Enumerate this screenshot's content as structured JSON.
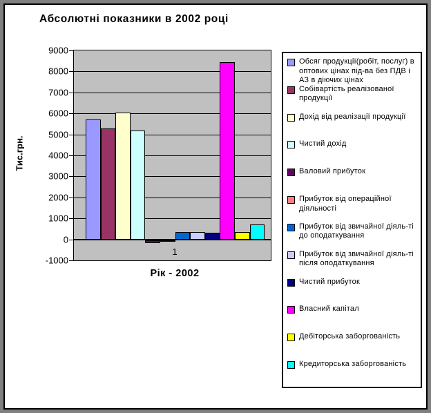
{
  "window": {
    "frame_color": "#808080",
    "border_color": "#000000",
    "background": "#FFFFFF"
  },
  "chart_data": {
    "type": "bar",
    "title": "Абсолютні показники в 2002 році",
    "xlabel": "Рік - 2002",
    "ylabel": "Тис.грн.",
    "categories": [
      "1"
    ],
    "ylim": [
      -1000,
      9000
    ],
    "ytick_step": 1000,
    "yticks": [
      9000,
      8000,
      7000,
      6000,
      5000,
      4000,
      3000,
      2000,
      1000,
      0,
      -1000
    ],
    "grid": true,
    "plot_background": "#C0C0C0",
    "legend_position": "right",
    "series": [
      {
        "name": "Обсяг продукції(робіт, послуг) в оптових цінах під-ва без ПДВ і АЗ в діючих цінах",
        "value": 5720,
        "color": "#9999FF"
      },
      {
        "name": "Собівартість реалізованої продукції",
        "value": 5280,
        "color": "#993366"
      },
      {
        "name": "Дохід від реалізації продукції",
        "value": 6030,
        "color": "#FFFFCC"
      },
      {
        "name": "Чистий дохід",
        "value": 5180,
        "color": "#CCFFFF"
      },
      {
        "name": "Валовий прибуток",
        "value": -160,
        "color": "#660066"
      },
      {
        "name": "Прибуток від операційної діяльності",
        "value": -90,
        "color": "#FF8080"
      },
      {
        "name": "Прибуток від звичайної діяль-ті до оподаткування",
        "value": 360,
        "color": "#0066CC"
      },
      {
        "name": "Прибуток від звичайної діяль-ті після оподаткування",
        "value": 340,
        "color": "#CCCCFF"
      },
      {
        "name": "Чистий прибуток",
        "value": 330,
        "color": "#000080"
      },
      {
        "name": "Власний капітал",
        "value": 8430,
        "color": "#FF00FF"
      },
      {
        "name": "Дебіторська заборгованість",
        "value": 340,
        "color": "#FFFF00"
      },
      {
        "name": "Кредиторська заборгованість",
        "value": 700,
        "color": "#00FFFF"
      }
    ]
  }
}
